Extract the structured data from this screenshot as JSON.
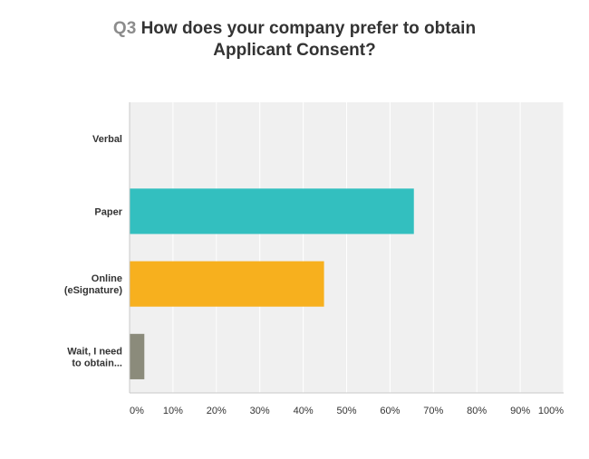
{
  "title": {
    "number": "Q3",
    "line1": "How does your company prefer to obtain",
    "line2": "Applicant Consent?"
  },
  "chart_data": {
    "type": "bar",
    "orientation": "horizontal",
    "categories": [
      "Verbal",
      "Paper",
      "Online (eSignature)",
      "Wait, I need to obtain..."
    ],
    "category_label_lines": [
      [
        "Verbal"
      ],
      [
        "Paper"
      ],
      [
        "Online",
        "(eSignature)"
      ],
      [
        "Wait, I need",
        "to obtain..."
      ]
    ],
    "values": [
      0,
      65.5,
      44.8,
      3.4
    ],
    "colors": [
      "#6e8fc2",
      "#33bfbf",
      "#f7b01e",
      "#8b8b7b"
    ],
    "xlim": [
      0,
      100
    ],
    "xticks": [
      0,
      10,
      20,
      30,
      40,
      50,
      60,
      70,
      80,
      90,
      100
    ],
    "xtick_labels": [
      "0%",
      "10%",
      "20%",
      "30%",
      "40%",
      "50%",
      "60%",
      "70%",
      "80%",
      "90%",
      "100%"
    ],
    "grid": true,
    "background": "#f0f0f0"
  }
}
